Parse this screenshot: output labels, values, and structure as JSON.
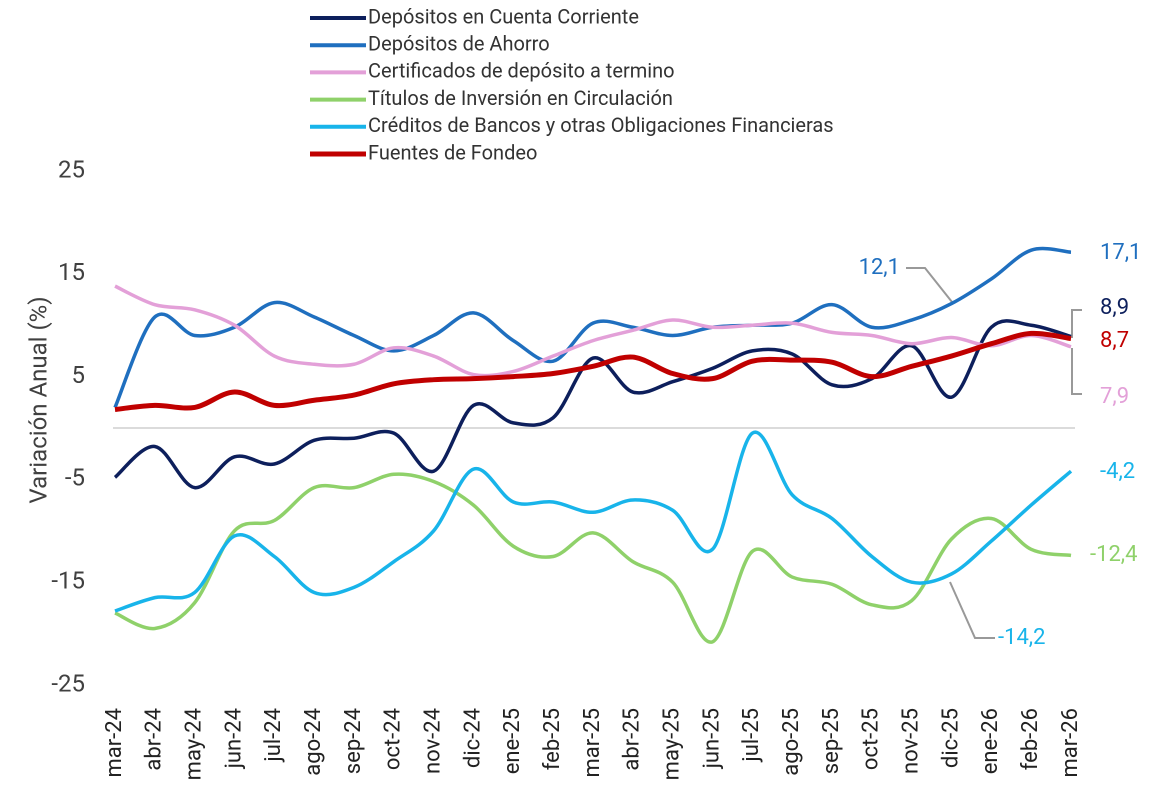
{
  "chart_data": {
    "type": "line",
    "y_label": "Variación Anual (%)",
    "categories": [
      "mar-24",
      "abr-24",
      "may-24",
      "jun-24",
      "jul-24",
      "ago-24",
      "sep-24",
      "oct-24",
      "nov-24",
      "dic-24",
      "ene-25",
      "feb-25",
      "mar-25",
      "abr-25",
      "may-25",
      "jun-25",
      "jul-25",
      "ago-25",
      "sep-25",
      "oct-25",
      "nov-25",
      "dic-25",
      "ene-26",
      "feb-26",
      "mar-26"
    ],
    "ylim": [
      -25,
      25
    ],
    "yticks": [
      -25,
      -15,
      -5,
      5,
      15,
      25
    ],
    "legend": "top",
    "series": [
      {
        "name": "Depósitos en Cuenta Corriente",
        "color": "#0d1f5c",
        "values": [
          -4.8,
          -1.8,
          -5.8,
          -2.8,
          -3.5,
          -1.2,
          -1.0,
          -0.5,
          -4.2,
          2.2,
          0.5,
          1.0,
          6.8,
          3.5,
          4.5,
          5.8,
          7.5,
          7.2,
          4.2,
          4.8,
          8.0,
          3.0,
          9.8,
          10.0,
          8.9
        ],
        "value_labels": [
          null,
          null,
          null,
          null,
          null,
          null,
          null,
          null,
          null,
          null,
          null,
          null,
          null,
          null,
          null,
          null,
          null,
          null,
          null,
          null,
          null,
          null,
          null,
          null,
          "8,9"
        ]
      },
      {
        "name": "Depósitos de Ahorro",
        "color": "#1f6fbf",
        "values": [
          2.0,
          10.8,
          9.0,
          9.8,
          12.2,
          10.8,
          9.0,
          7.5,
          9.0,
          11.2,
          8.5,
          6.5,
          10.2,
          9.8,
          9.0,
          9.8,
          10.0,
          10.2,
          12.0,
          9.8,
          10.5,
          12.1,
          14.5,
          17.3,
          17.1
        ],
        "value_labels": [
          null,
          null,
          null,
          null,
          null,
          null,
          null,
          null,
          null,
          null,
          null,
          null,
          null,
          null,
          null,
          null,
          null,
          null,
          null,
          null,
          null,
          "12,1",
          null,
          null,
          "17,1"
        ]
      },
      {
        "name": "Certificados de depósito a termino",
        "color": "#e3a0d8",
        "values": [
          13.8,
          12.0,
          11.5,
          10.0,
          7.0,
          6.2,
          6.2,
          7.8,
          7.0,
          5.2,
          5.5,
          7.0,
          8.5,
          9.5,
          10.5,
          9.8,
          10.0,
          10.2,
          9.3,
          9.0,
          8.2,
          8.8,
          8.0,
          9.0,
          7.9
        ],
        "value_labels": [
          null,
          null,
          null,
          null,
          null,
          null,
          null,
          null,
          null,
          null,
          null,
          null,
          null,
          null,
          null,
          null,
          null,
          null,
          null,
          null,
          null,
          null,
          null,
          null,
          "7,9"
        ]
      },
      {
        "name": "Títulos de Inversión en Circulación",
        "color": "#8fd16a",
        "values": [
          -18.0,
          -19.5,
          -17.0,
          -10.0,
          -9.0,
          -5.8,
          -5.8,
          -4.5,
          -5.2,
          -7.5,
          -11.5,
          -12.5,
          -10.2,
          -13.0,
          -15.0,
          -20.8,
          -12.0,
          -14.5,
          -15.2,
          -17.2,
          -16.8,
          -10.8,
          -8.8,
          -11.8,
          -12.4
        ],
        "value_labels": [
          null,
          null,
          null,
          null,
          null,
          null,
          null,
          null,
          null,
          null,
          null,
          null,
          null,
          null,
          null,
          null,
          null,
          null,
          null,
          null,
          null,
          null,
          null,
          null,
          "-12,4"
        ]
      },
      {
        "name": "Créditos de Bancos y otras Obligaciones Financieras",
        "color": "#18b4ea",
        "values": [
          -17.8,
          -16.5,
          -16.0,
          -10.5,
          -12.5,
          -16.0,
          -15.5,
          -13.0,
          -10.0,
          -4.0,
          -7.2,
          -7.2,
          -8.2,
          -7.0,
          -8.0,
          -11.8,
          -0.5,
          -6.5,
          -8.8,
          -12.5,
          -15.0,
          -14.2,
          -11.0,
          -7.5,
          -4.2
        ],
        "value_labels": [
          null,
          null,
          null,
          null,
          null,
          null,
          null,
          null,
          null,
          null,
          null,
          null,
          null,
          null,
          null,
          null,
          null,
          null,
          null,
          null,
          null,
          "-14,2",
          null,
          null,
          "-4,2"
        ]
      },
      {
        "name": "Fuentes de Fondeo",
        "color": "#c00000",
        "values": [
          1.8,
          2.2,
          2.0,
          3.5,
          2.2,
          2.7,
          3.2,
          4.3,
          4.7,
          4.8,
          5.0,
          5.3,
          6.0,
          6.9,
          5.3,
          4.8,
          6.5,
          6.6,
          6.4,
          5.0,
          6.0,
          7.0,
          8.2,
          9.2,
          8.7
        ],
        "value_labels": [
          null,
          null,
          null,
          null,
          null,
          null,
          null,
          null,
          null,
          null,
          null,
          null,
          null,
          null,
          null,
          null,
          null,
          null,
          null,
          null,
          null,
          null,
          null,
          null,
          "8,7"
        ]
      }
    ]
  }
}
